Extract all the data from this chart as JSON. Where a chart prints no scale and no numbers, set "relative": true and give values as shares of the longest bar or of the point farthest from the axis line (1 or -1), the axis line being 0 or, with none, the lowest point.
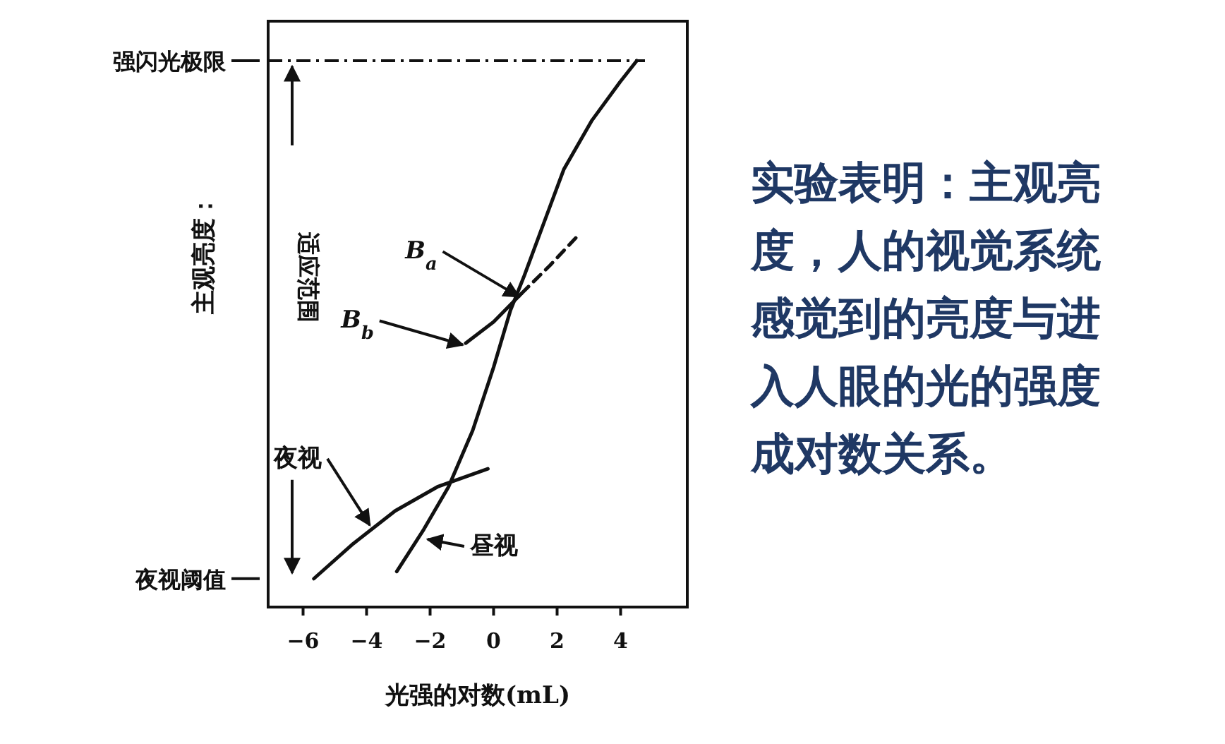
{
  "chart_data": [
    {
      "type": "line",
      "relative": true,
      "tick_labels": "x",
      "grid": false,
      "xlabel": "光强的对数(mL)",
      "ylabel": "主观亮度：",
      "xlim": [
        -7.1,
        6.1
      ],
      "xticks": [
        {
          "value": -6,
          "label": "−6"
        },
        {
          "value": -4,
          "label": "−4"
        },
        {
          "value": -2,
          "label": "−2"
        },
        0,
        2,
        4
      ],
      "series": [
        {
          "color": "#111111",
          "line_style": "solid",
          "x": [
            -3.05,
            -2.2,
            -1.42,
            -0.66,
            0,
            0.53,
            0.97,
            1.55,
            2.21,
            3.1,
            3.98,
            4.51
          ],
          "values": [
            0.065,
            0.142,
            0.22,
            0.323,
            0.439,
            0.543,
            0.607,
            0.698,
            0.801,
            0.891,
            0.961,
            1.0
          ]
        },
        {
          "color": "#111111",
          "line_style": "solid",
          "x": [
            -5.66,
            -4.42,
            -3.1,
            -1.77,
            -0.18
          ],
          "values": [
            0.052,
            0.116,
            0.176,
            0.22,
            0.253
          ]
        },
        {
          "color": "#111111",
          "line_style": "solid",
          "x": [
            -0.88,
            0,
            0.88
          ],
          "values": [
            0.483,
            0.522,
            0.574
          ]
        },
        {
          "color": "#111111",
          "line_style": "dashed",
          "x": [
            0.88,
            1.77,
            2.74
          ],
          "values": [
            0.574,
            0.625,
            0.685
          ]
        }
      ],
      "ref_lines": [
        {
          "axis": "y",
          "value": 1.0,
          "label": "强闪光极限",
          "line_style": "dashdot"
        },
        {
          "axis": "y",
          "value": 0.052,
          "label": "夜视阈值"
        }
      ],
      "annotations": [
        {
          "text": "B$_{a}$",
          "x": 0.8,
          "y": 0.568
        },
        {
          "text": "B$_{b}$",
          "x": -0.97,
          "y": 0.48
        },
        {
          "text": "夜视",
          "x": -3.9,
          "y": 0.15
        },
        {
          "text": "昼视",
          "x": -2.08,
          "y": 0.124
        },
        "适应范围"
      ]
    },
    {
      "type": "other",
      "annotations": [
        "实验表明：主观亮度，人的视觉系统感觉到的亮度与进入人眼的光的强度成对数关系。"
      ]
    }
  ]
}
